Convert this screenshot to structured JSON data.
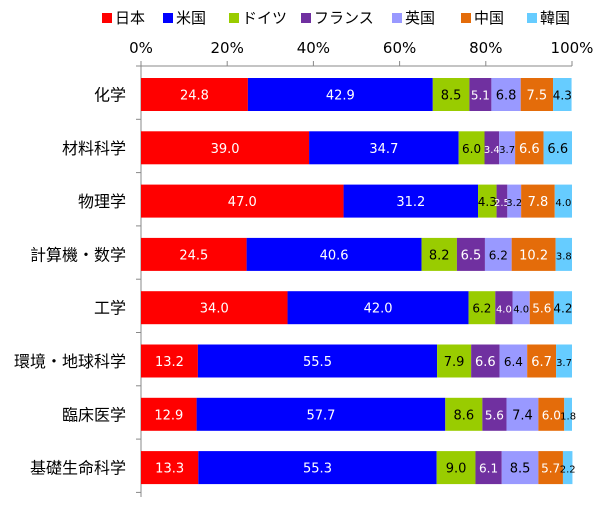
{
  "chart_data": {
    "type": "bar",
    "orientation": "horizontal",
    "stacked": true,
    "percent_stacked": true,
    "title": "",
    "xlabel": "",
    "ylabel": "",
    "xlim": [
      0,
      100
    ],
    "x_ticks": [
      "0%",
      "20%",
      "40%",
      "60%",
      "80%",
      "100%"
    ],
    "grid": false,
    "legend_position": "top",
    "categories": [
      "化学",
      "材料科学",
      "物理学",
      "計算機・数学",
      "工学",
      "環境・地球科学",
      "臨床医学",
      "基礎生命科学"
    ],
    "series": [
      {
        "name": "日本",
        "color": "#ff0000",
        "label_color": "#ffffff",
        "values": [
          24.8,
          39.0,
          47.0,
          24.5,
          34.0,
          13.2,
          12.9,
          13.3
        ],
        "labels": [
          "24.8",
          "39.0",
          "47.0",
          "24.5",
          "34.0",
          "13.2",
          "12.9",
          "13.3"
        ]
      },
      {
        "name": "米国",
        "color": "#0000ff",
        "label_color": "#ffffff",
        "values": [
          42.9,
          34.7,
          31.2,
          40.6,
          42.0,
          55.5,
          57.7,
          55.3
        ],
        "labels": [
          "42.9",
          "34.7",
          "31.2",
          "40.6",
          "42.0",
          "55.5",
          "57.7",
          "55.3"
        ]
      },
      {
        "name": "ドイツ",
        "color": "#99cc00",
        "label_color": "#000000",
        "values": [
          8.5,
          6.0,
          4.3,
          8.2,
          6.2,
          7.9,
          8.6,
          9.0
        ],
        "labels": [
          "8.5",
          "6.0",
          "4.3",
          "8.2",
          "6.2",
          "7.9",
          "8.6",
          "9.0"
        ]
      },
      {
        "name": "フランス",
        "color": "#7030a0",
        "label_color": "#ffffff",
        "values": [
          5.1,
          3.4,
          2.5,
          6.5,
          4.0,
          6.6,
          5.6,
          6.1
        ],
        "labels": [
          "5.1",
          "3.4",
          "2.5",
          "6.5",
          "4.0",
          "6.6",
          "5.6",
          "6.1"
        ]
      },
      {
        "name": "英国",
        "color": "#9999ff",
        "label_color": "#000000",
        "values": [
          6.8,
          3.7,
          3.2,
          6.2,
          4.0,
          6.4,
          7.4,
          8.5
        ],
        "labels": [
          "6.8",
          "3.7",
          "3.2",
          "6.2",
          "4.0",
          "6.4",
          "7.4",
          "8.5"
        ]
      },
      {
        "name": "中国",
        "color": "#e46c0a",
        "label_color": "#ffffff",
        "values": [
          7.5,
          6.6,
          7.8,
          10.2,
          5.6,
          6.7,
          6.0,
          5.7
        ],
        "labels": [
          "7.5",
          "6.6",
          "7.8",
          "10.2",
          "5.6",
          "6.7",
          "6.0",
          "5.7"
        ]
      },
      {
        "name": "韓国",
        "color": "#66ccff",
        "label_color": "#000000",
        "values": [
          4.3,
          6.6,
          4.0,
          3.8,
          4.2,
          3.7,
          1.8,
          2.2
        ],
        "labels": [
          "4.3",
          "6.6",
          "4.0",
          "3.8",
          "4.2",
          "3.7",
          "1.8",
          "2.2"
        ]
      }
    ]
  }
}
